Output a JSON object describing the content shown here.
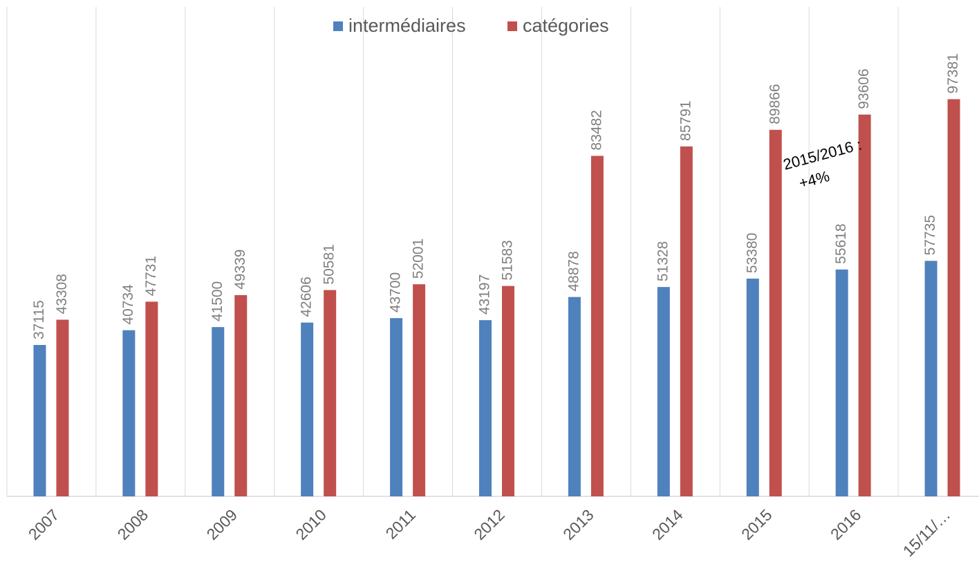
{
  "chart_data": {
    "type": "bar",
    "categories": [
      "2007",
      "2008",
      "2009",
      "2010",
      "2011",
      "2012",
      "2013",
      "2014",
      "2015",
      "2016",
      "15/11/…"
    ],
    "series": [
      {
        "name": "intermédiaires",
        "color": "#4f81bd",
        "values": [
          37115,
          40734,
          41500,
          42606,
          43700,
          43197,
          48878,
          51328,
          53380,
          55618,
          57735
        ]
      },
      {
        "name": "catégories",
        "color": "#c0504d",
        "values": [
          43308,
          47731,
          49339,
          50581,
          52001,
          51583,
          83482,
          85791,
          89866,
          93606,
          97381
        ]
      }
    ],
    "ylim": [
      0,
      120000
    ],
    "legend": "top",
    "annotation": [
      "2015/2016 :",
      "+4%"
    ]
  }
}
